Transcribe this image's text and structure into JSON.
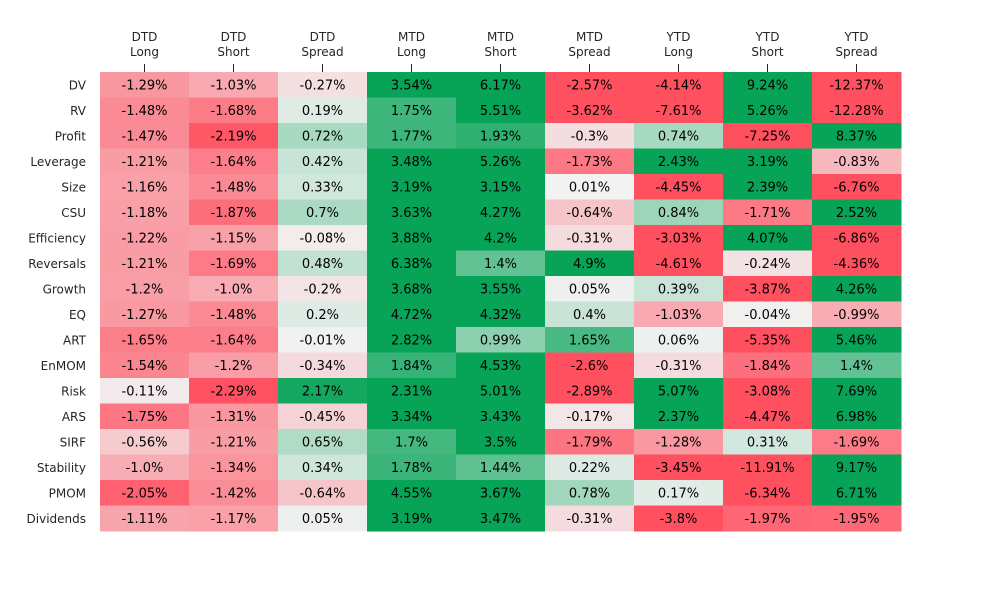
{
  "chart_data": {
    "type": "heatmap",
    "title": "",
    "xlabel": "",
    "ylabel": "",
    "columns": [
      [
        "DTD",
        "Long"
      ],
      [
        "DTD",
        "Short"
      ],
      [
        "DTD",
        "Spread"
      ],
      [
        "MTD",
        "Long"
      ],
      [
        "MTD",
        "Short"
      ],
      [
        "MTD",
        "Spread"
      ],
      [
        "YTD",
        "Long"
      ],
      [
        "YTD",
        "Short"
      ],
      [
        "YTD",
        "Spread"
      ]
    ],
    "rows": [
      "DV",
      "RV",
      "Profit",
      "Leverage",
      "Size",
      "CSU",
      "Efficiency",
      "Reversals",
      "Growth",
      "EQ",
      "ART",
      "EnMOM",
      "Risk",
      "ARS",
      "SIRF",
      "Stability",
      "PMOM",
      "Dividends"
    ],
    "values": [
      [
        -1.29,
        -1.03,
        -0.27,
        3.54,
        6.17,
        -2.57,
        -4.14,
        9.24,
        -12.37
      ],
      [
        -1.48,
        -1.68,
        0.19,
        1.75,
        5.51,
        -3.62,
        -7.61,
        5.26,
        -12.28
      ],
      [
        -1.47,
        -2.19,
        0.72,
        1.77,
        1.93,
        -0.3,
        0.74,
        -7.25,
        8.37
      ],
      [
        -1.21,
        -1.64,
        0.42,
        3.48,
        5.26,
        -1.73,
        2.43,
        3.19,
        -0.83
      ],
      [
        -1.16,
        -1.48,
        0.33,
        3.19,
        3.15,
        0.01,
        -4.45,
        2.39,
        -6.76
      ],
      [
        -1.18,
        -1.87,
        0.7,
        3.63,
        4.27,
        -0.64,
        0.84,
        -1.71,
        2.52
      ],
      [
        -1.22,
        -1.15,
        -0.08,
        3.88,
        4.2,
        -0.31,
        -3.03,
        4.07,
        -6.86
      ],
      [
        -1.21,
        -1.69,
        0.48,
        6.38,
        1.4,
        4.9,
        -4.61,
        -0.24,
        -4.36
      ],
      [
        -1.2,
        -1.0,
        -0.2,
        3.68,
        3.55,
        0.05,
        0.39,
        -3.87,
        4.26
      ],
      [
        -1.27,
        -1.48,
        0.2,
        4.72,
        4.32,
        0.4,
        -1.03,
        -0.04,
        -0.99
      ],
      [
        -1.65,
        -1.64,
        -0.01,
        2.82,
        0.99,
        1.65,
        0.06,
        -5.35,
        5.46
      ],
      [
        -1.54,
        -1.2,
        -0.34,
        1.84,
        4.53,
        -2.6,
        -0.31,
        -1.84,
        1.4
      ],
      [
        -0.11,
        -2.29,
        2.17,
        2.31,
        5.01,
        -2.89,
        5.07,
        -3.08,
        7.69
      ],
      [
        -1.75,
        -1.31,
        -0.45,
        3.34,
        3.43,
        -0.17,
        2.37,
        -4.47,
        6.98
      ],
      [
        -0.56,
        -1.21,
        0.65,
        1.7,
        3.5,
        -1.79,
        -1.28,
        0.31,
        -1.69
      ],
      [
        -1.0,
        -1.34,
        0.34,
        1.78,
        1.44,
        0.22,
        -3.45,
        -11.91,
        9.17
      ],
      [
        -2.05,
        -1.42,
        -0.64,
        4.55,
        3.67,
        0.78,
        0.17,
        -6.34,
        6.71
      ],
      [
        -1.11,
        -1.17,
        0.05,
        3.19,
        3.47,
        -0.31,
        -3.8,
        -1.97,
        -1.95
      ]
    ],
    "labels": [
      [
        "-1.29%",
        "-1.03%",
        "-0.27%",
        "3.54%",
        "6.17%",
        "-2.57%",
        "-4.14%",
        "9.24%",
        "-12.37%"
      ],
      [
        "-1.48%",
        "-1.68%",
        "0.19%",
        "1.75%",
        "5.51%",
        "-3.62%",
        "-7.61%",
        "5.26%",
        "-12.28%"
      ],
      [
        "-1.47%",
        "-2.19%",
        "0.72%",
        "1.77%",
        "1.93%",
        "-0.3%",
        "0.74%",
        "-7.25%",
        "8.37%"
      ],
      [
        "-1.21%",
        "-1.64%",
        "0.42%",
        "3.48%",
        "5.26%",
        "-1.73%",
        "2.43%",
        "3.19%",
        "-0.83%"
      ],
      [
        "-1.16%",
        "-1.48%",
        "0.33%",
        "3.19%",
        "3.15%",
        "0.01%",
        "-4.45%",
        "2.39%",
        "-6.76%"
      ],
      [
        "-1.18%",
        "-1.87%",
        "0.7%",
        "3.63%",
        "4.27%",
        "-0.64%",
        "0.84%",
        "-1.71%",
        "2.52%"
      ],
      [
        "-1.22%",
        "-1.15%",
        "-0.08%",
        "3.88%",
        "4.2%",
        "-0.31%",
        "-3.03%",
        "4.07%",
        "-6.86%"
      ],
      [
        "-1.21%",
        "-1.69%",
        "0.48%",
        "6.38%",
        "1.4%",
        "4.9%",
        "-4.61%",
        "-0.24%",
        "-4.36%"
      ],
      [
        "-1.2%",
        "-1.0%",
        "-0.2%",
        "3.68%",
        "3.55%",
        "0.05%",
        "0.39%",
        "-3.87%",
        "4.26%"
      ],
      [
        "-1.27%",
        "-1.48%",
        "0.2%",
        "4.72%",
        "4.32%",
        "0.4%",
        "-1.03%",
        "-0.04%",
        "-0.99%"
      ],
      [
        "-1.65%",
        "-1.64%",
        "-0.01%",
        "2.82%",
        "0.99%",
        "1.65%",
        "0.06%",
        "-5.35%",
        "5.46%"
      ],
      [
        "-1.54%",
        "-1.2%",
        "-0.34%",
        "1.84%",
        "4.53%",
        "-2.6%",
        "-0.31%",
        "-1.84%",
        "1.4%"
      ],
      [
        "-0.11%",
        "-2.29%",
        "2.17%",
        "2.31%",
        "5.01%",
        "-2.89%",
        "5.07%",
        "-3.08%",
        "7.69%"
      ],
      [
        "-1.75%",
        "-1.31%",
        "-0.45%",
        "3.34%",
        "3.43%",
        "-0.17%",
        "2.37%",
        "-4.47%",
        "6.98%"
      ],
      [
        "-0.56%",
        "-1.21%",
        "0.65%",
        "1.7%",
        "3.5%",
        "-1.79%",
        "-1.28%",
        "0.31%",
        "-1.69%"
      ],
      [
        "-1.0%",
        "-1.34%",
        "0.34%",
        "1.78%",
        "1.44%",
        "0.22%",
        "-3.45%",
        "-11.91%",
        "9.17%"
      ],
      [
        "-2.05%",
        "-1.42%",
        "-0.64%",
        "4.55%",
        "3.67%",
        "0.78%",
        "0.17%",
        "-6.34%",
        "6.71%"
      ],
      [
        "-1.11%",
        "-1.17%",
        "0.05%",
        "3.19%",
        "3.47%",
        "-0.31%",
        "-3.8%",
        "-1.97%",
        "-1.95%"
      ]
    ],
    "color_scale": {
      "negative": "#ff5060",
      "neutral": "#f2f2f2",
      "positive": "#07a357",
      "saturation_limit": 2.3
    },
    "grid": false,
    "legend": "none"
  }
}
